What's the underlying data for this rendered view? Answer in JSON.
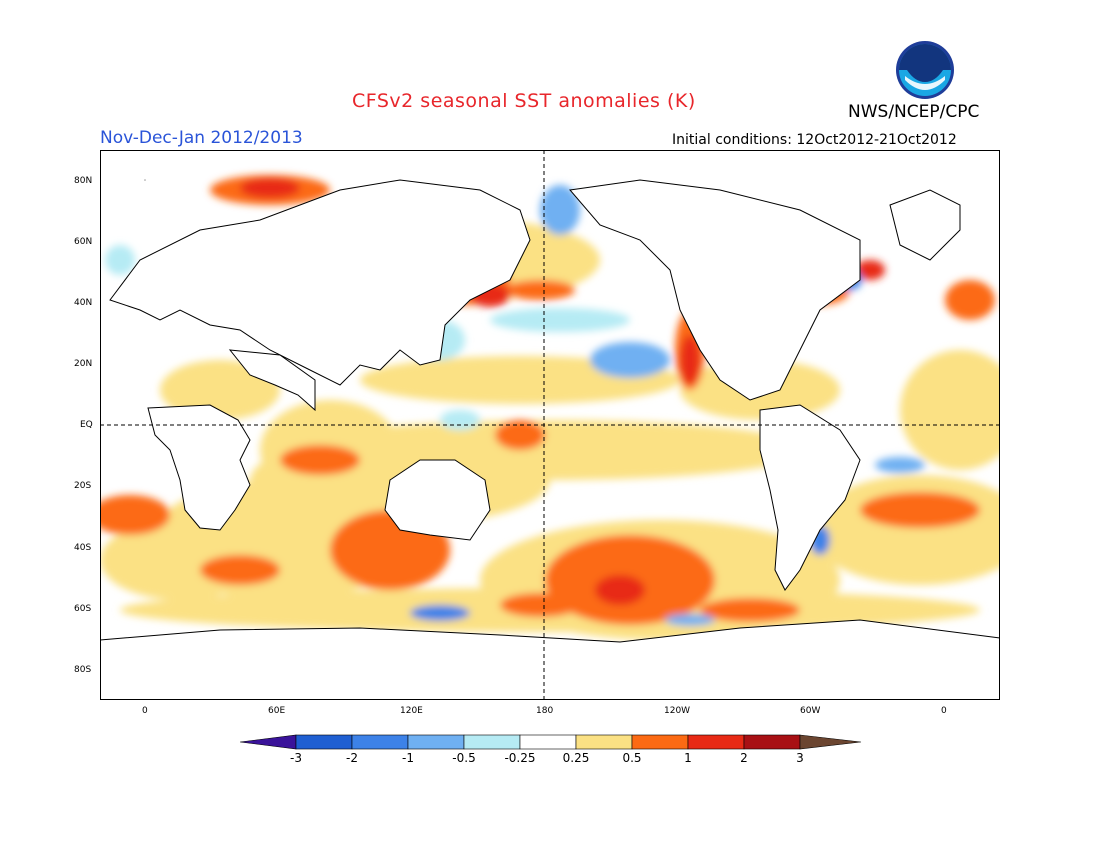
{
  "header": {
    "title": "CFSv2 seasonal SST anomalies (K)",
    "agency": "NWS/NCEP/CPC",
    "period": "Nov-Dec-Jan 2012/2013",
    "initial_conditions": "Initial conditions: 12Oct2012-21Oct2012",
    "logo_text": "NOAA"
  },
  "map": {
    "lat_labels": [
      "80N",
      "60N",
      "40N",
      "20N",
      "EQ",
      "20S",
      "40S",
      "60S",
      "80S"
    ],
    "lon_labels": [
      "0",
      "60E",
      "120E",
      "180",
      "120W",
      "60W",
      "0"
    ]
  },
  "colorbar": {
    "labels": [
      "-3",
      "-2",
      "-1",
      "-0.5",
      "-0.25",
      "0.25",
      "0.5",
      "1",
      "2",
      "3"
    ],
    "colors": [
      "#3a139a",
      "#1f5fd2",
      "#3d82e8",
      "#6fb0f2",
      "#b6ebf4",
      "#ffffff",
      "#fbe184",
      "#fc6a13",
      "#e82a15",
      "#a81014",
      "#6b4530"
    ]
  }
}
